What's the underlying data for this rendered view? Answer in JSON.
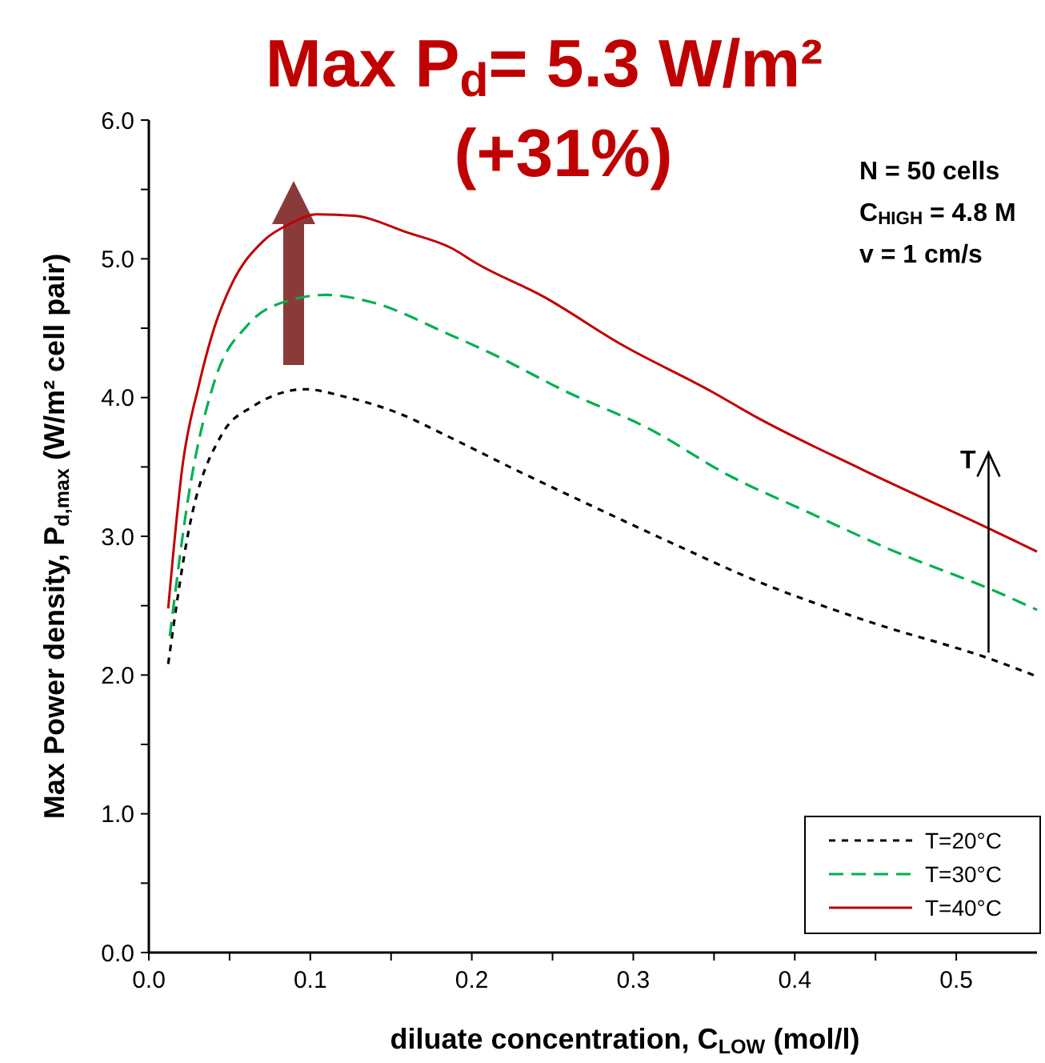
{
  "chart_data": {
    "type": "line",
    "title": "Max P$_{d}$= 5.3 W/m²",
    "subtitle": "(+31%)",
    "xlabel": "diluate concentration, C$_{LOW}$ (mol/l)",
    "ylabel": "Max Power density, P$_{d,max}$ (W/m² cell pair)",
    "annotations": [
      "N = 50 cells",
      "C$_{HIGH}$ = 4.8 M",
      "v = 1 cm/s",
      {
        "text": "T",
        "x": 0.52,
        "y": 3.05
      }
    ],
    "xlim": [
      0,
      0.55
    ],
    "ylim": [
      0,
      6
    ],
    "xticks": [
      {
        "value": 0,
        "label": "0.0"
      },
      {
        "value": 0.05,
        "label": null
      },
      {
        "value": 0.1,
        "label": "0.1"
      },
      {
        "value": 0.15,
        "label": null
      },
      {
        "value": 0.2,
        "label": "0.2"
      },
      {
        "value": 0.25,
        "label": null
      },
      {
        "value": 0.3,
        "label": "0.3"
      },
      {
        "value": 0.35,
        "label": null
      },
      {
        "value": 0.4,
        "label": "0.4"
      },
      {
        "value": 0.45,
        "label": null
      },
      {
        "value": 0.5,
        "label": "0.5"
      }
    ],
    "yticks": [
      {
        "value": 0,
        "label": "0.0"
      },
      {
        "value": 0.5,
        "label": null
      },
      {
        "value": 1,
        "label": "1.0"
      },
      {
        "value": 1.5,
        "label": null
      },
      {
        "value": 2,
        "label": "2.0"
      },
      {
        "value": 2.5,
        "label": null
      },
      {
        "value": 3,
        "label": "3.0"
      },
      {
        "value": 3.5,
        "label": null
      },
      {
        "value": 4,
        "label": "4.0"
      },
      {
        "value": 4.5,
        "label": null
      },
      {
        "value": 5,
        "label": "5.0"
      },
      {
        "value": 5.5,
        "label": null
      },
      {
        "value": 6,
        "label": "6.0"
      }
    ],
    "grid": false,
    "legend": "bottom right",
    "series": [
      {
        "name": "T=20°C",
        "color": "#000000",
        "line_style": "dotted",
        "x": [
          0.012,
          0.025,
          0.045,
          0.065,
          0.097,
          0.12,
          0.154,
          0.187,
          0.227,
          0.276,
          0.326,
          0.376,
          0.442,
          0.525,
          0.55
        ],
        "values": [
          2.08,
          3.06,
          3.73,
          3.94,
          4.06,
          4.01,
          3.89,
          3.71,
          3.48,
          3.21,
          2.94,
          2.68,
          2.4,
          2.1,
          1.99
        ]
      },
      {
        "name": "T=30°C",
        "color": "#00b050",
        "line_style": "dashed",
        "x": [
          0.013,
          0.025,
          0.041,
          0.061,
          0.084,
          0.11,
          0.137,
          0.187,
          0.21,
          0.259,
          0.309,
          0.359,
          0.409,
          0.458,
          0.525,
          0.55
        ],
        "values": [
          2.28,
          3.32,
          4.13,
          4.52,
          4.69,
          4.74,
          4.69,
          4.45,
          4.33,
          4.04,
          3.78,
          3.44,
          3.17,
          2.91,
          2.6,
          2.47
        ]
      },
      {
        "name": "T=40°C",
        "color": "#c00000",
        "line_style": "solid",
        "x": [
          0.012,
          0.021,
          0.031,
          0.041,
          0.051,
          0.071,
          0.087,
          0.104,
          0.127,
          0.16,
          0.187,
          0.204,
          0.244,
          0.293,
          0.349,
          0.376,
          0.442,
          0.525,
          0.55
        ],
        "values": [
          2.48,
          3.52,
          4.09,
          4.52,
          4.81,
          5.13,
          5.25,
          5.32,
          5.31,
          5.19,
          5.08,
          4.96,
          4.73,
          4.38,
          4.04,
          3.86,
          3.48,
          3.03,
          2.89
        ]
      }
    ]
  }
}
